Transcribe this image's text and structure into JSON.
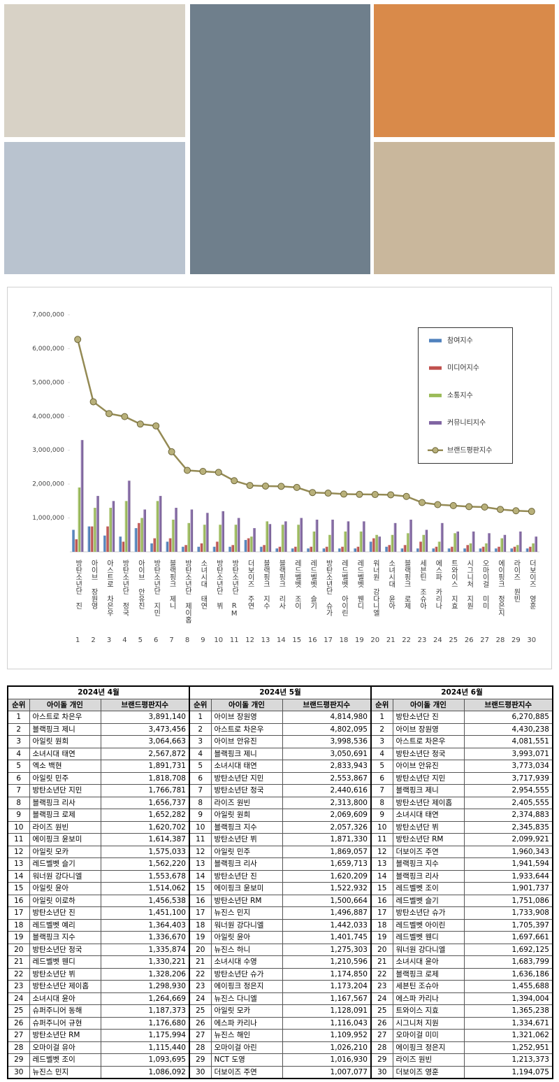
{
  "chart_data": {
    "type": "bar",
    "categories": [
      "방탄소년단 진",
      "아이브 장원영",
      "아스트로 차은우",
      "방탄소년단 정국",
      "아이브 안유진",
      "방탄소년단 지민",
      "블랙핑크 제니",
      "방탄소년단 제이홉",
      "소녀시대 태연",
      "방탄소년단 뷔",
      "방탄소년단 RM",
      "더보이즈 주연",
      "블랙핑크 지수",
      "블랙핑크 리사",
      "레드벨벳 조이",
      "레드벨벳 슬기",
      "방탄소년단 슈가",
      "레드벨벳 아이린",
      "레드벨벳 웬디",
      "워너원 강다니엘",
      "소녀시대 윤아",
      "블랙핑크 로제",
      "세븐틴 조슈아",
      "에스파 카리나",
      "트와이스 지효",
      "시그니처 지원",
      "오마이걸 미미",
      "에이핑크 정은지",
      "라이즈 원빈",
      "더보이즈 영훈"
    ],
    "rank_labels": [
      1,
      2,
      3,
      4,
      5,
      6,
      7,
      8,
      9,
      10,
      11,
      12,
      13,
      14,
      15,
      16,
      17,
      18,
      19,
      20,
      21,
      22,
      23,
      24,
      25,
      26,
      27,
      28,
      29,
      30
    ],
    "series": [
      {
        "name": "참여지수",
        "color": "#4f81bd",
        "values": [
          650000,
          750000,
          480000,
          450000,
          700000,
          250000,
          300000,
          150000,
          150000,
          150000,
          150000,
          350000,
          150000,
          100000,
          100000,
          100000,
          100000,
          100000,
          100000,
          300000,
          150000,
          100000,
          100000,
          100000,
          100000,
          100000,
          100000,
          100000,
          100000,
          100000
        ]
      },
      {
        "name": "미디어지수",
        "color": "#c0504d",
        "values": [
          370000,
          750000,
          750000,
          300000,
          850000,
          400000,
          400000,
          200000,
          250000,
          300000,
          200000,
          400000,
          200000,
          150000,
          150000,
          150000,
          150000,
          150000,
          150000,
          400000,
          200000,
          200000,
          300000,
          150000,
          150000,
          200000,
          150000,
          150000,
          150000,
          150000
        ]
      },
      {
        "name": "소통지수",
        "color": "#9bbb59",
        "values": [
          1900000,
          1300000,
          1300000,
          1500000,
          1000000,
          1500000,
          950000,
          850000,
          800000,
          800000,
          800000,
          450000,
          900000,
          800000,
          800000,
          600000,
          500000,
          600000,
          600000,
          500000,
          500000,
          550000,
          500000,
          300000,
          550000,
          250000,
          250000,
          400000,
          200000,
          250000
        ]
      },
      {
        "name": "커뮤니티지수",
        "color": "#8064a2",
        "values": [
          3300000,
          1650000,
          1500000,
          2100000,
          1250000,
          1650000,
          1300000,
          1250000,
          1150000,
          1200000,
          1000000,
          700000,
          820000,
          900000,
          1000000,
          950000,
          950000,
          900000,
          900000,
          450000,
          850000,
          950000,
          650000,
          850000,
          600000,
          600000,
          550000,
          500000,
          600000,
          450000
        ]
      },
      {
        "name": "브랜드평판지수",
        "type": "line",
        "color": "#948a54",
        "values": [
          6270885,
          4430238,
          4081551,
          3993071,
          3773034,
          3717939,
          2954555,
          2405555,
          2374883,
          2345835,
          2099921,
          1960343,
          1941594,
          1933644,
          1901737,
          1751086,
          1733908,
          1705397,
          1697661,
          1692125,
          1683799,
          1636186,
          1455688,
          1394004,
          1365238,
          1334671,
          1321062,
          1252951,
          1213373,
          1194075
        ]
      }
    ],
    "ylim": [
      0,
      7000000
    ],
    "yticks": [
      {
        "value": 1000000,
        "label": "1,000,000"
      },
      {
        "value": 2000000,
        "label": "2,000,000"
      },
      {
        "value": 3000000,
        "label": "3,000,000"
      },
      {
        "value": 4000000,
        "label": "4,000,000"
      },
      {
        "value": 5000000,
        "label": "5,000,000"
      },
      {
        "value": 6000000,
        "label": "6,000,000"
      },
      {
        "value": 7000000,
        "label": "7,000,000"
      }
    ],
    "legend": "upper right"
  },
  "table": {
    "headers": [
      "순위",
      "아이돌 개인",
      "브랜드평판지수"
    ],
    "months": [
      {
        "title": "2024년 4월",
        "rows": [
          [
            "1",
            "아스트로 차은우",
            "3,891,140"
          ],
          [
            "2",
            "블랙핑크 제니",
            "3,473,456"
          ],
          [
            "3",
            "아일릿 원희",
            "3,064,663"
          ],
          [
            "4",
            "소녀시대 태연",
            "2,567,872"
          ],
          [
            "5",
            "엑소 백현",
            "1,891,731"
          ],
          [
            "6",
            "아일릿 민주",
            "1,818,708"
          ],
          [
            "7",
            "방탄소년단 지민",
            "1,766,781"
          ],
          [
            "8",
            "블랙핑크 리사",
            "1,656,737"
          ],
          [
            "9",
            "블랙핑크 로제",
            "1,652,282"
          ],
          [
            "10",
            "라이즈 원빈",
            "1,620,702"
          ],
          [
            "11",
            "에이핑크 윤보미",
            "1,614,387"
          ],
          [
            "12",
            "아일릿 모카",
            "1,575,033"
          ],
          [
            "13",
            "레드벨벳 슬기",
            "1,562,220"
          ],
          [
            "14",
            "워너원 강다니엘",
            "1,553,678"
          ],
          [
            "15",
            "아일릿 윤아",
            "1,514,062"
          ],
          [
            "16",
            "아일릿 이로하",
            "1,456,538"
          ],
          [
            "17",
            "방탄소년단 진",
            "1,451,100"
          ],
          [
            "18",
            "레드벨벳 예리",
            "1,364,403"
          ],
          [
            "19",
            "블랙핑크 지수",
            "1,336,670"
          ],
          [
            "20",
            "방탄소년단 정국",
            "1,335,874"
          ],
          [
            "21",
            "레드벨벳 웬디",
            "1,330,221"
          ],
          [
            "22",
            "방탄소년단 뷔",
            "1,328,206"
          ],
          [
            "23",
            "방탄소년단 제이홉",
            "1,298,930"
          ],
          [
            "24",
            "소녀시대 윤아",
            "1,264,669"
          ],
          [
            "25",
            "슈퍼주니어 동해",
            "1,187,373"
          ],
          [
            "26",
            "슈퍼주니어 규현",
            "1,176,680"
          ],
          [
            "27",
            "방탄소년단 RM",
            "1,175,994"
          ],
          [
            "28",
            "오마이걸 유아",
            "1,115,440"
          ],
          [
            "29",
            "레드벨벳 조이",
            "1,093,695"
          ],
          [
            "30",
            "뉴진스 민지",
            "1,086,092"
          ]
        ]
      },
      {
        "title": "2024년 5월",
        "rows": [
          [
            "1",
            "아이브 장원영",
            "4,814,980"
          ],
          [
            "2",
            "아스트로 차은우",
            "4,802,095"
          ],
          [
            "3",
            "아이브 안유진",
            "3,998,536"
          ],
          [
            "4",
            "블랙핑크 제니",
            "3,050,691"
          ],
          [
            "5",
            "소녀시대 태연",
            "2,833,943"
          ],
          [
            "6",
            "방탄소년단 지민",
            "2,553,867"
          ],
          [
            "7",
            "방탄소년단 정국",
            "2,440,616"
          ],
          [
            "8",
            "라이즈 원빈",
            "2,313,800"
          ],
          [
            "9",
            "아일릿 원희",
            "2,069,609"
          ],
          [
            "10",
            "블랙핑크 지수",
            "2,057,326"
          ],
          [
            "11",
            "방탄소년단 뷔",
            "1,871,330"
          ],
          [
            "12",
            "아일릿 민주",
            "1,869,057"
          ],
          [
            "13",
            "블랙핑크 리사",
            "1,659,713"
          ],
          [
            "14",
            "방탄소년단 진",
            "1,620,209"
          ],
          [
            "15",
            "에이핑크 윤보미",
            "1,522,932"
          ],
          [
            "16",
            "방탄소년단 RM",
            "1,500,664"
          ],
          [
            "17",
            "뉴진스 민지",
            "1,496,887"
          ],
          [
            "18",
            "워너원 강다니엘",
            "1,442,033"
          ],
          [
            "19",
            "아일릿 윤아",
            "1,401,745"
          ],
          [
            "20",
            "뉴진스 하니",
            "1,275,303"
          ],
          [
            "21",
            "소녀시대 수영",
            "1,210,596"
          ],
          [
            "22",
            "방탄소년단 슈가",
            "1,174,850"
          ],
          [
            "23",
            "에이핑크 정은지",
            "1,173,204"
          ],
          [
            "24",
            "뉴진스 다니엘",
            "1,167,567"
          ],
          [
            "25",
            "아일릿 모카",
            "1,128,091"
          ],
          [
            "26",
            "에스파 카리나",
            "1,116,043"
          ],
          [
            "27",
            "뉴진스 해인",
            "1,109,952"
          ],
          [
            "28",
            "오마이걸 아린",
            "1,026,210"
          ],
          [
            "29",
            "NCT 도영",
            "1,016,930"
          ],
          [
            "30",
            "더보이즈 주연",
            "1,007,077"
          ]
        ]
      },
      {
        "title": "2024년 6월",
        "rows": [
          [
            "1",
            "방탄소년단 진",
            "6,270,885"
          ],
          [
            "2",
            "아이브 장원영",
            "4,430,238"
          ],
          [
            "3",
            "아스트로 차은우",
            "4,081,551"
          ],
          [
            "4",
            "방탄소년단 정국",
            "3,993,071"
          ],
          [
            "5",
            "아이브 안유진",
            "3,773,034"
          ],
          [
            "6",
            "방탄소년단 지민",
            "3,717,939"
          ],
          [
            "7",
            "블랙핑크 제니",
            "2,954,555"
          ],
          [
            "8",
            "방탄소년단 제이홉",
            "2,405,555"
          ],
          [
            "9",
            "소녀시대 태연",
            "2,374,883"
          ],
          [
            "10",
            "방탄소년단 뷔",
            "2,345,835"
          ],
          [
            "11",
            "방탄소년단 RM",
            "2,099,921"
          ],
          [
            "12",
            "더보이즈 주연",
            "1,960,343"
          ],
          [
            "13",
            "블랙핑크 지수",
            "1,941,594"
          ],
          [
            "14",
            "블랙핑크 리사",
            "1,933,644"
          ],
          [
            "15",
            "레드벨벳 조이",
            "1,901,737"
          ],
          [
            "16",
            "레드벨벳 슬기",
            "1,751,086"
          ],
          [
            "17",
            "방탄소년단 슈가",
            "1,733,908"
          ],
          [
            "18",
            "레드벨벳 아이린",
            "1,705,397"
          ],
          [
            "19",
            "레드벨벳 웬디",
            "1,697,661"
          ],
          [
            "20",
            "워너원 강다니엘",
            "1,692,125"
          ],
          [
            "21",
            "소녀시대 윤아",
            "1,683,799"
          ],
          [
            "22",
            "블랙핑크 로제",
            "1,636,186"
          ],
          [
            "23",
            "세븐틴 조슈아",
            "1,455,688"
          ],
          [
            "24",
            "에스파 카리나",
            "1,394,004"
          ],
          [
            "25",
            "트와이스 지효",
            "1,365,238"
          ],
          [
            "26",
            "시그니처 지원",
            "1,334,671"
          ],
          [
            "27",
            "오마이걸 미미",
            "1,321,062"
          ],
          [
            "28",
            "에이핑크 정은지",
            "1,252,951"
          ],
          [
            "29",
            "라이즈 원빈",
            "1,213,373"
          ],
          [
            "30",
            "더보이즈 영훈",
            "1,194,075"
          ]
        ]
      }
    ]
  }
}
